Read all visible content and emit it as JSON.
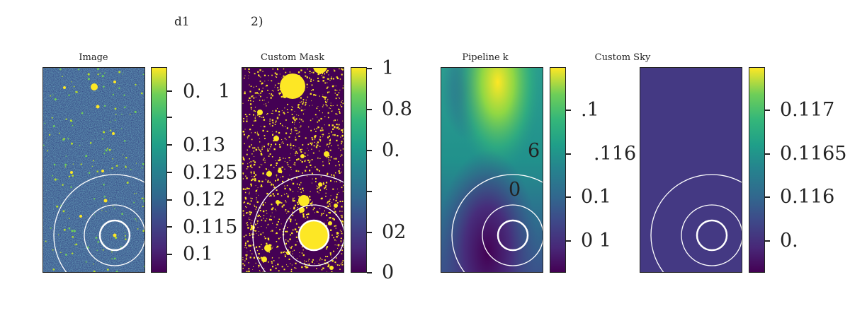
{
  "figure": {
    "title_fragments": [
      "d1",
      "2)"
    ]
  },
  "colormap": [
    "#440154",
    "#482878",
    "#3e4989",
    "#31688e",
    "#26828e",
    "#1f9e89",
    "#35b779",
    "#6ece58",
    "#fde725"
  ],
  "chart_data": [
    {
      "type": "heatmap",
      "title": "Image",
      "colorbar_ticks": [
        "",
        "",
        "0.13",
        "0.125",
        "0.12",
        "0.115",
        "0.1"
      ],
      "colorbar_extra_labels": [
        "0.",
        "1"
      ],
      "annotations": []
    },
    {
      "type": "heatmap",
      "title": "Custom Mask",
      "colorbar_ticks": [
        "1",
        "0.8",
        "0.",
        "",
        "02",
        "0"
      ],
      "colorbar_extra_labels": [],
      "annotations": []
    },
    {
      "type": "heatmap",
      "title": "Pipeline k",
      "colorbar_ticks": [
        ".1",
        ".116",
        "0.1",
        "0 1"
      ],
      "colorbar_extra_labels": [],
      "annotations": [
        "6",
        "0"
      ]
    },
    {
      "type": "heatmap",
      "title": "Custom Sky",
      "colorbar_ticks": [
        "0.117",
        "0.1165",
        "0.116",
        "0."
      ],
      "colorbar_extra_labels": [],
      "annotations": []
    }
  ]
}
